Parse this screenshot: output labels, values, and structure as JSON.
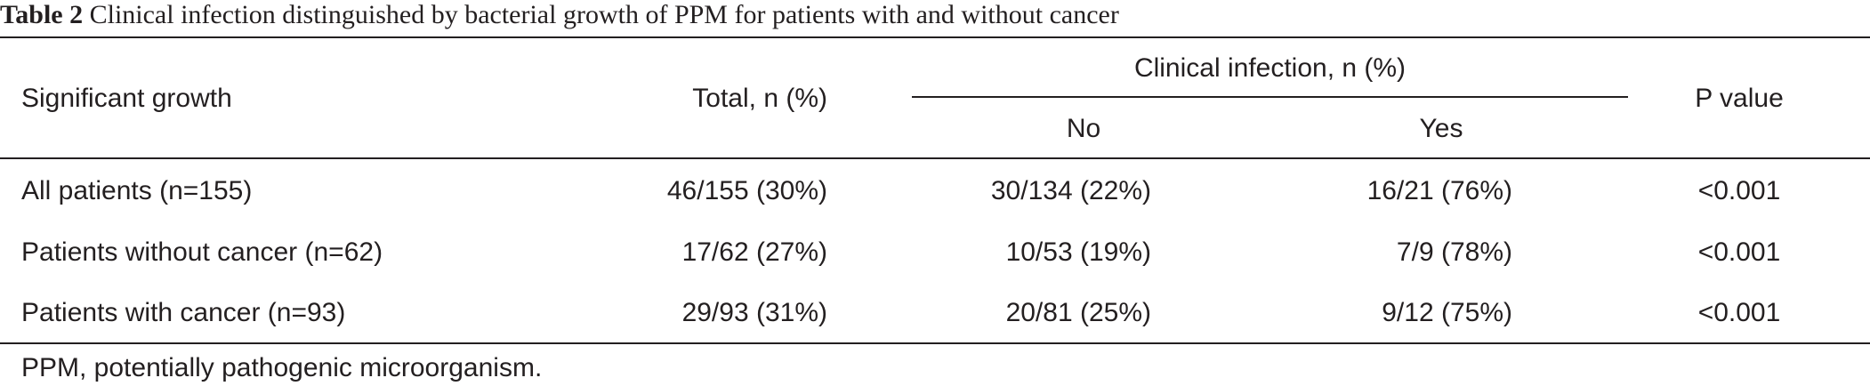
{
  "caption": {
    "label": "Table 2",
    "text": "Clinical infection distinguished by bacterial growth of PPM for patients with and without cancer"
  },
  "header": {
    "growth": "Significant growth",
    "total": "Total, n (%)",
    "clinical": "Clinical infection, n (%)",
    "no": "No",
    "yes": "Yes",
    "p": "P value"
  },
  "rows": [
    {
      "group": "All patients (n=155)",
      "total": "46/155 (30%)",
      "no": "30/134 (22%)",
      "yes": "16/21 (76%)",
      "p": "<0.001"
    },
    {
      "group": "Patients without cancer (n=62)",
      "total": "17/62 (27%)",
      "no": "10/53 (19%)",
      "yes": "7/9 (78%)",
      "p": "<0.001"
    },
    {
      "group": "Patients with cancer (n=93)",
      "total": "29/93 (31%)",
      "no": "20/81 (25%)",
      "yes": "9/12 (75%)",
      "p": "<0.001"
    }
  ],
  "footnote": "PPM, potentially pathogenic microorganism."
}
